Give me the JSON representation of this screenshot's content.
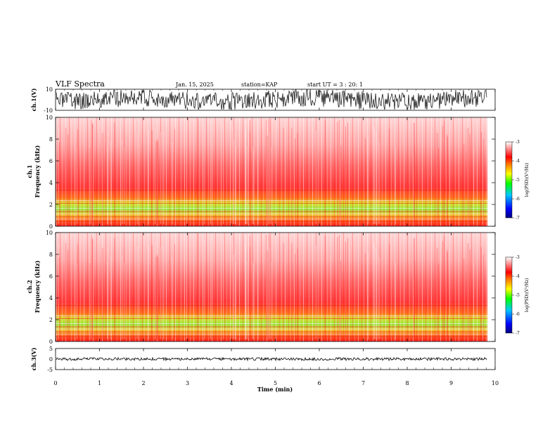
{
  "header": {
    "title": "VLF Spectra",
    "date": "Jan. 15, 2025",
    "station": "station=KAP",
    "start": "start UT =  3 : 20: 1"
  },
  "chart_data": {
    "type": "heatmap",
    "x": {
      "label": "Time (min)",
      "range": [
        0,
        10
      ],
      "ticks": [
        "0",
        "1",
        "2",
        "3",
        "4",
        "5",
        "6",
        "7",
        "8",
        "9",
        "10"
      ]
    },
    "panels": [
      {
        "name": "ch.1(V)",
        "type": "line",
        "ylabel": "ch.1(V)",
        "ylim": [
          -10,
          10
        ],
        "ticks": [
          "10",
          "-10"
        ]
      },
      {
        "name": "ch.1",
        "type": "heatmap",
        "ylabel_top": "ch.1",
        "ylabel": "Frequency (kHz)",
        "ylim": [
          0,
          10
        ],
        "ticks": [
          "0",
          "2",
          "4",
          "6",
          "8",
          "10"
        ],
        "colorbar": {
          "label": "log(PSD)(V²/Hz)",
          "range": [
            -7,
            -3
          ],
          "ticks": [
            "-3",
            "-4",
            "-5",
            "-6",
            "-7"
          ]
        }
      },
      {
        "name": "ch.2",
        "type": "heatmap",
        "ylabel_top": "ch.2",
        "ylabel": "Frequency (kHz)",
        "ylim": [
          0,
          10
        ],
        "ticks": [
          "0",
          "2",
          "4",
          "6",
          "8",
          "10"
        ],
        "colorbar": {
          "label": "log(PSD)(V²/Hz)",
          "range": [
            -7,
            -3
          ],
          "ticks": [
            "-3",
            "-4",
            "-5",
            "-6",
            "-7"
          ]
        }
      },
      {
        "name": "ch.3(V)",
        "type": "line",
        "ylabel": "ch.3(V)",
        "ylim": [
          -5,
          5
        ],
        "ticks": [
          "5",
          "0",
          "-5"
        ]
      }
    ],
    "colormap": [
      "#000080",
      "#0000ff",
      "#00c8ff",
      "#00ff00",
      "#ffff00",
      "#ff8000",
      "#ff0000",
      "#ffffff"
    ]
  }
}
